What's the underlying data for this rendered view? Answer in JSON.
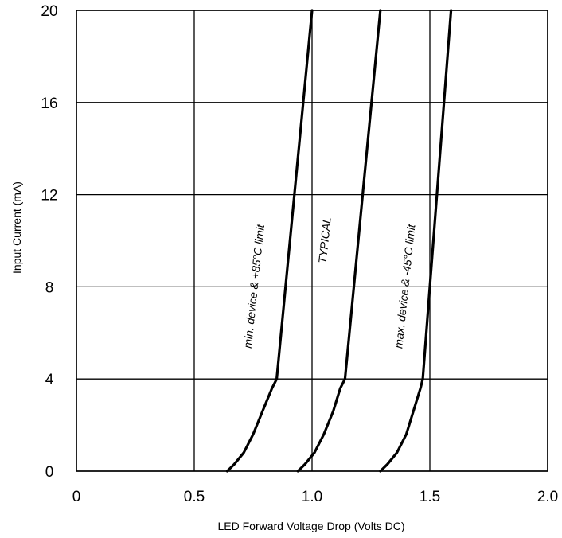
{
  "chart_data": {
    "type": "line",
    "title": "",
    "xlabel": "LED Forward Voltage Drop (Volts DC)",
    "ylabel": "Input Current (mA)",
    "xlim": [
      0,
      2.0
    ],
    "ylim": [
      0,
      20
    ],
    "x_ticks": [
      "0",
      "0.5",
      "1.0",
      "1.5",
      "2.0"
    ],
    "x_tick_values": [
      0,
      0.5,
      1.0,
      1.5,
      2.0
    ],
    "y_ticks": [
      "0",
      "4",
      "8",
      "12",
      "16",
      "20"
    ],
    "y_tick_values": [
      0,
      4,
      8,
      12,
      16,
      20
    ],
    "grid": true,
    "series": [
      {
        "label": "min. device & +85°C limit",
        "points": [
          [
            0.64,
            0.0
          ],
          [
            0.67,
            0.3
          ],
          [
            0.71,
            0.8
          ],
          [
            0.75,
            1.6
          ],
          [
            0.79,
            2.6
          ],
          [
            0.83,
            3.6
          ],
          [
            0.85,
            4.0
          ],
          [
            1.0,
            20.0
          ]
        ]
      },
      {
        "label": "TYPICAL",
        "points": [
          [
            0.94,
            0.0
          ],
          [
            0.97,
            0.3
          ],
          [
            1.01,
            0.8
          ],
          [
            1.05,
            1.6
          ],
          [
            1.09,
            2.6
          ],
          [
            1.12,
            3.6
          ],
          [
            1.14,
            4.0
          ],
          [
            1.29,
            20.0
          ]
        ]
      },
      {
        "label": "max. device & -45°C limit",
        "points": [
          [
            1.29,
            0.0
          ],
          [
            1.32,
            0.3
          ],
          [
            1.36,
            0.8
          ],
          [
            1.4,
            1.6
          ],
          [
            1.43,
            2.6
          ],
          [
            1.46,
            3.6
          ],
          [
            1.47,
            4.0
          ],
          [
            1.59,
            20.0
          ]
        ]
      }
    ],
    "annotations": [
      {
        "text": "min. device & +85°C limit",
        "x": 0.77,
        "y": 8.0,
        "rotate": -84
      },
      {
        "text": "TYPICAL",
        "x": 1.07,
        "y": 10.0,
        "rotate": -84
      },
      {
        "text": "max. device & -45°C limit",
        "x": 1.41,
        "y": 8.0,
        "rotate": -84
      }
    ]
  }
}
